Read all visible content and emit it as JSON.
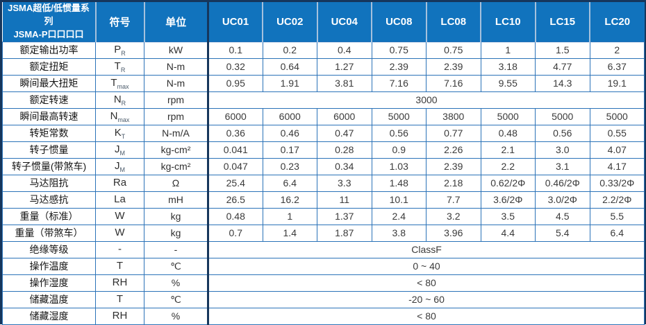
{
  "table": {
    "title_line1": "JSMA超低/低惯量系列",
    "title_line2": "JSMA-P口口口口",
    "col_symbol": "符号",
    "col_unit": "单位",
    "models": [
      "UC01",
      "UC02",
      "UC04",
      "UC08",
      "LC08",
      "LC10",
      "LC15",
      "LC20"
    ],
    "accent_colors": {
      "header_blue": "#1173bd",
      "grid_blue": "#2a72b8",
      "outer_navy": "#16365c",
      "header_separator": "#a6c1dd"
    },
    "rows": [
      {
        "label": "额定输出功率",
        "sym": "P",
        "sub": "R",
        "unit": "kW",
        "values": [
          "0.1",
          "0.2",
          "0.4",
          "0.75",
          "0.75",
          "1",
          "1.5",
          "2"
        ]
      },
      {
        "label": "额定扭矩",
        "sym": "T",
        "sub": "R",
        "unit": "N-m",
        "values": [
          "0.32",
          "0.64",
          "1.27",
          "2.39",
          "2.39",
          "3.18",
          "4.77",
          "6.37"
        ]
      },
      {
        "label": "瞬间最大扭矩",
        "sym": "T",
        "sub": "max",
        "unit": "N-m",
        "values": [
          "0.95",
          "1.91",
          "3.81",
          "7.16",
          "7.16",
          "9.55",
          "14.3",
          "19.1"
        ]
      },
      {
        "label": "额定转速",
        "sym": "N",
        "sub": "R",
        "unit": "rpm",
        "merged": "3000"
      },
      {
        "label": "瞬间最高转速",
        "sym": "N",
        "sub": "max",
        "unit": "rpm",
        "values": [
          "6000",
          "6000",
          "6000",
          "5000",
          "3800",
          "5000",
          "5000",
          "5000"
        ]
      },
      {
        "label": "转矩常数",
        "sym": "K",
        "sub": "T",
        "unit": "N-m/A",
        "values": [
          "0.36",
          "0.46",
          "0.47",
          "0.56",
          "0.77",
          "0.48",
          "0.56",
          "0.55"
        ]
      },
      {
        "label": "转子惯量",
        "sym": "J",
        "sub": "M",
        "unit": "kg-cm²",
        "values": [
          "0.041",
          "0.17",
          "0.28",
          "0.9",
          "2.26",
          "2.1",
          "3.0",
          "4.07"
        ]
      },
      {
        "label": "转子惯量(带煞车)",
        "sym": "J",
        "sub": "M",
        "unit": "kg-cm²",
        "values": [
          "0.047",
          "0.23",
          "0.34",
          "1.03",
          "2.39",
          "2.2",
          "3.1",
          "4.17"
        ]
      },
      {
        "label": "马达阻抗",
        "sym": "Ra",
        "sub": "",
        "unit": "Ω",
        "values": [
          "25.4",
          "6.4",
          "3.3",
          "1.48",
          "2.18",
          "0.62/2Φ",
          "0.46/2Φ",
          "0.33/2Φ"
        ]
      },
      {
        "label": "马达感抗",
        "sym": "La",
        "sub": "",
        "unit": "mH",
        "values": [
          "26.5",
          "16.2",
          "11",
          "10.1",
          "7.7",
          "3.6/2Φ",
          "3.0/2Φ",
          "2.2/2Φ"
        ]
      },
      {
        "label": "重量（标准）",
        "sym": "W",
        "sub": "",
        "unit": "kg",
        "values": [
          "0.48",
          "1",
          "1.37",
          "2.4",
          "3.2",
          "3.5",
          "4.5",
          "5.5"
        ]
      },
      {
        "label": "重量（带煞车）",
        "sym": "W",
        "sub": "",
        "unit": "kg",
        "values": [
          "0.7",
          "1.4",
          "1.87",
          "3.8",
          "3.96",
          "4.4",
          "5.4",
          "6.4"
        ]
      },
      {
        "label": "绝缘等级",
        "sym": "-",
        "sub": "",
        "unit": "-",
        "merged": "ClassF"
      },
      {
        "label": "操作温度",
        "sym": "T",
        "sub": "",
        "unit": "℃",
        "merged": "0 ~ 40"
      },
      {
        "label": "操作湿度",
        "sym": "RH",
        "sub": "",
        "unit": "%",
        "merged": "< 80"
      },
      {
        "label": "储藏温度",
        "sym": "T",
        "sub": "",
        "unit": "℃",
        "merged": "-20 ~ 60"
      },
      {
        "label": "储藏湿度",
        "sym": "RH",
        "sub": "",
        "unit": "%",
        "merged": "< 80"
      }
    ]
  }
}
